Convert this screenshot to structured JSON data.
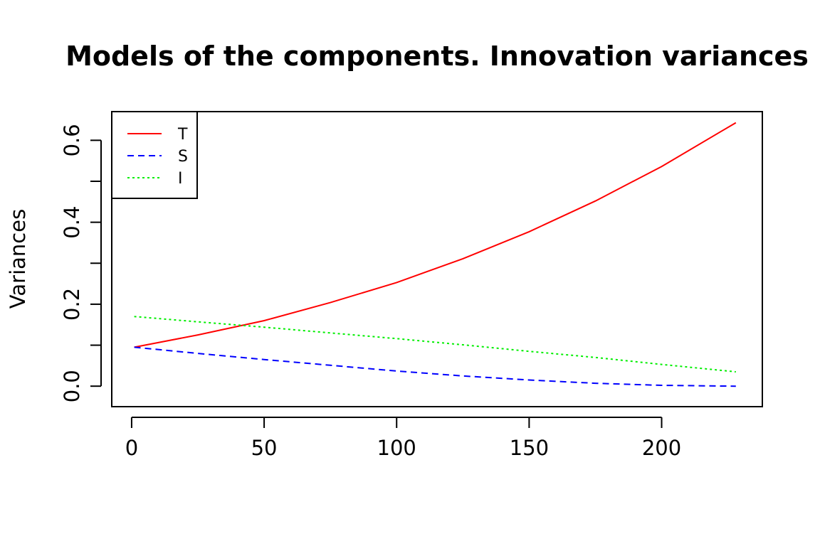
{
  "chart_data": {
    "type": "line",
    "title": "Models of the components. Innovation variances",
    "xlabel": "",
    "ylabel": "Variances",
    "xlim": [
      -7.5,
      238
    ],
    "ylim": [
      -0.05,
      0.67
    ],
    "x_ticks": [
      0,
      50,
      100,
      150,
      200
    ],
    "y_ticks": [
      0.0,
      0.1,
      0.2,
      0.3,
      0.4,
      0.5,
      0.6
    ],
    "y_tick_labels": [
      "0.0",
      "",
      "0.2",
      "",
      "0.4",
      "",
      "0.6"
    ],
    "grid": false,
    "legend": {
      "position": "top-left"
    },
    "x": [
      1,
      25,
      50,
      75,
      100,
      125,
      150,
      175,
      200,
      228
    ],
    "series": [
      {
        "name": "T",
        "color": "#ff0000",
        "dash": "solid",
        "values": [
          0.095,
          0.125,
          0.16,
          0.204,
          0.253,
          0.311,
          0.377,
          0.452,
          0.536,
          0.643
        ]
      },
      {
        "name": "S",
        "color": "#0000ff",
        "dash": "dashed",
        "values": [
          0.095,
          0.08,
          0.065,
          0.051,
          0.037,
          0.025,
          0.015,
          0.007,
          0.002,
          0.0
        ]
      },
      {
        "name": "I",
        "color": "#00ee00",
        "dash": "dotted",
        "values": [
          0.17,
          0.157,
          0.144,
          0.13,
          0.116,
          0.101,
          0.085,
          0.07,
          0.053,
          0.035
        ]
      }
    ]
  }
}
